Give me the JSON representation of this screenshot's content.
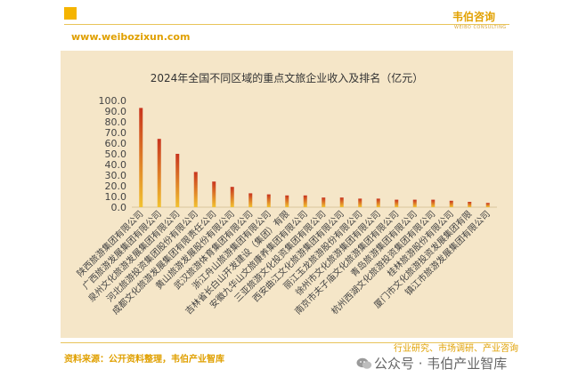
{
  "header": {
    "brand_name": "韦伯咨询",
    "brand_sub": "WEIBO CONSULTING",
    "website": "www.weibozixun.com"
  },
  "footer": {
    "source": "资料来源：公开资料整理，韦伯产业智库",
    "tagline": "行业研究、市场调研、产业咨询",
    "wechat": "公众号 · 韦伯产业智库"
  },
  "colors": {
    "accent": "#f5b400",
    "bar_top": "#c8341e",
    "bar_bottom": "#f2c230",
    "panel": "#f5e6c8"
  },
  "chart_data": {
    "type": "bar",
    "title": "2024年全国不同区域的重点文旅企业收入及排名（亿元）",
    "ylim": [
      0,
      100
    ],
    "yticks": [
      "0.0",
      "10.0",
      "20.0",
      "30.0",
      "40.0",
      "50.0",
      "60.0",
      "70.0",
      "80.0",
      "90.0",
      "100.0"
    ],
    "categories": [
      "陕西旅游集团有限公司",
      "广西旅游发展集团有限公司",
      "泉州文化旅游发展集团有限公司",
      "河北旅游投资集团股份有限公司",
      "成都文化旅游发展集团有限责任公司",
      "黄山旅游发展股份有限公司",
      "武汉旅游体育集团有限公司",
      "浙江舟山旅游集团有限公司",
      "吉林省长白山开发建设（集团）有限",
      "安徽九华山文旅康养集团有限公司",
      "三亚旅游文化投资集团有限公司",
      "西安曲江文化旅游集团有限公司",
      "丽江玉龙旅游股份有限公司",
      "徐州市文化旅游集团有限公司",
      "南京市夫子庙文化旅游集团有限公司",
      "青岛旅游集团有限公司",
      "杭州西湖文化旅游投资集团有限公司",
      "桂林旅游股份有限公司",
      "厦门市文化旅游投资发展集团有限",
      "镇江市旅游发展集团有限公司"
    ],
    "values": [
      93,
      64,
      50,
      33,
      24,
      19,
      13,
      12,
      11,
      11,
      9,
      9,
      8,
      8,
      7,
      7,
      7,
      6,
      5,
      4
    ]
  }
}
